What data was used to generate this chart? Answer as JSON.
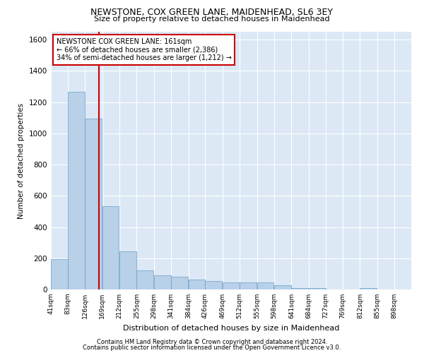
{
  "title1": "NEWSTONE, COX GREEN LANE, MAIDENHEAD, SL6 3EY",
  "title2": "Size of property relative to detached houses in Maidenhead",
  "xlabel": "Distribution of detached houses by size in Maidenhead",
  "ylabel": "Number of detached properties",
  "footer1": "Contains HM Land Registry data © Crown copyright and database right 2024.",
  "footer2": "Contains public sector information licensed under the Open Government Licence v3.0.",
  "property_size": 161,
  "property_label": "NEWSTONE COX GREEN LANE: 161sqm",
  "annotation_line1": "← 66% of detached houses are smaller (2,386)",
  "annotation_line2": "34% of semi-detached houses are larger (1,212) →",
  "bar_color": "#b8d0e8",
  "bar_edge_color": "#6a9fc8",
  "vline_color": "#cc0000",
  "background_color": "#dce8f5",
  "grid_color": "#ffffff",
  "bins": [
    41,
    83,
    126,
    169,
    212,
    255,
    298,
    341,
    384,
    426,
    469,
    512,
    555,
    598,
    641,
    684,
    727,
    769,
    812,
    855,
    898
  ],
  "counts": [
    193,
    1265,
    1093,
    535,
    243,
    120,
    92,
    80,
    64,
    55,
    43,
    43,
    43,
    28,
    10,
    10,
    0,
    0,
    10,
    0,
    0
  ],
  "ylim": [
    0,
    1650
  ],
  "yticks": [
    0,
    200,
    400,
    600,
    800,
    1000,
    1200,
    1400,
    1600
  ]
}
